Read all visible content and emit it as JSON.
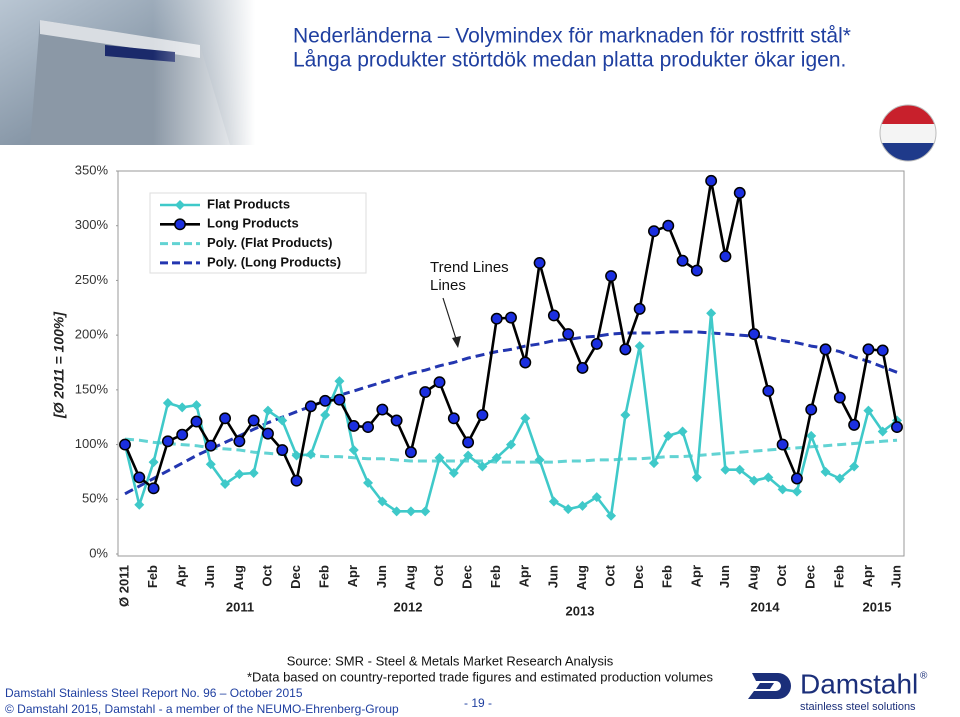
{
  "chart_data": {
    "type": "line",
    "title": "Nederländerna – Volymindex för marknaden för rostfritt stål*",
    "subtitle": "Långa produkter störtdök medan platta produkter ökar igen.",
    "y_label": "[Ø 2011 = 100%]",
    "annotation": "Trend Lines",
    "categories": [
      "Ø 2011",
      null,
      "Feb",
      null,
      "Apr",
      null,
      "Jun",
      null,
      "Aug",
      null,
      "Oct",
      null,
      "Dec",
      null,
      "Feb",
      null,
      "Apr",
      null,
      "Jun",
      null,
      "Aug",
      null,
      "Oct",
      null,
      "Dec",
      null,
      "Feb",
      null,
      "Apr",
      null,
      "Jun",
      null,
      "Aug",
      null,
      "Oct",
      null,
      "Dec",
      null,
      "Feb",
      null,
      "Apr",
      null,
      "Jun",
      null,
      "Aug",
      null,
      "Oct",
      null,
      "Dec",
      null,
      "Feb",
      null,
      "Apr",
      null,
      "Jun"
    ],
    "year_labels": [
      "2011",
      "2012",
      "2013",
      "2014",
      "2015"
    ],
    "series": [
      {
        "name": "Flat Products",
        "color": "#3fc9c9",
        "marker": "diamond",
        "dashed": false,
        "values": [
          100,
          45,
          84,
          138,
          134,
          136,
          82,
          64,
          73,
          74,
          131,
          122,
          90,
          91,
          127,
          158,
          95,
          65,
          48,
          39,
          39,
          39,
          88,
          74,
          90,
          80,
          88,
          100,
          124,
          86,
          48,
          41,
          44,
          52,
          35,
          127,
          190,
          83,
          108,
          112,
          70,
          220,
          77,
          77,
          67,
          70,
          59,
          57,
          108,
          75,
          69,
          80,
          131,
          112,
          122
        ]
      },
      {
        "name": "Long Products",
        "color": "#000000",
        "marker": "circle",
        "marker_color": "#1b2fe0",
        "dashed": false,
        "values": [
          100,
          70,
          60,
          103,
          109,
          121,
          99,
          124,
          103,
          122,
          110,
          95,
          67,
          135,
          140,
          141,
          117,
          116,
          132,
          122,
          93,
          148,
          157,
          124,
          102,
          127,
          215,
          216,
          175,
          266,
          218,
          201,
          170,
          192,
          254,
          187,
          224,
          295,
          300,
          268,
          259,
          341,
          272,
          330,
          201,
          149,
          100,
          69,
          132,
          187,
          143,
          118,
          187,
          186,
          116
        ]
      },
      {
        "name": "Poly. (Flat Products)",
        "color": "#62d3d3",
        "marker": "none",
        "dashed": true,
        "values": [
          105,
          104,
          102,
          101,
          100,
          99,
          97,
          96,
          95,
          93,
          92,
          91,
          91,
          90,
          89,
          89,
          88,
          87,
          87,
          86,
          85,
          85,
          85,
          85,
          85,
          85,
          84,
          84,
          84,
          84,
          84,
          85,
          85,
          86,
          86,
          87,
          87,
          88,
          89,
          89,
          90,
          91,
          92,
          93,
          94,
          95,
          96,
          97,
          98,
          99,
          100,
          101,
          102,
          103,
          104
        ]
      },
      {
        "name": "Poly. (Long Products)",
        "color": "#2336b0",
        "marker": "none",
        "dashed": true,
        "values": [
          55,
          62,
          69,
          76,
          83,
          90,
          96,
          102,
          108,
          114,
          120,
          125,
          130,
          135,
          140,
          145,
          149,
          153,
          157,
          161,
          165,
          168,
          172,
          175,
          179,
          182,
          185,
          187,
          190,
          192,
          195,
          196,
          198,
          199,
          201,
          202,
          202,
          202,
          203,
          203,
          203,
          202,
          201,
          200,
          199,
          198,
          195,
          193,
          190,
          188,
          185,
          180,
          176,
          171,
          166
        ]
      }
    ],
    "ylim": [
      0,
      350
    ],
    "yticks": [
      {
        "value": 0,
        "label": "0%"
      },
      {
        "value": 50,
        "label": "50%"
      },
      {
        "value": 100,
        "label": "100%"
      },
      {
        "value": 150,
        "label": "150%"
      },
      {
        "value": 200,
        "label": "200%"
      },
      {
        "value": 250,
        "label": "250%"
      },
      {
        "value": 300,
        "label": "300%"
      },
      {
        "value": 350,
        "label": "350%"
      }
    ],
    "grid": false,
    "legend": "top-left"
  },
  "source": {
    "line1": "Source: SMR - Steel & Metals Market Research Analysis",
    "line2": "*Data based on country-reported trade figures and estimated production volumes"
  },
  "footer": {
    "report": "Damstahl Stainless Steel Report No. 96 – October 2015",
    "copyright": "© Damstahl 2015, Damstahl - a member of the NEUMO-Ehrenberg-Group",
    "page": "- 19 -"
  },
  "logo": {
    "name": "Damstahl",
    "mark": "®",
    "tagline": "stainless steel solutions"
  }
}
